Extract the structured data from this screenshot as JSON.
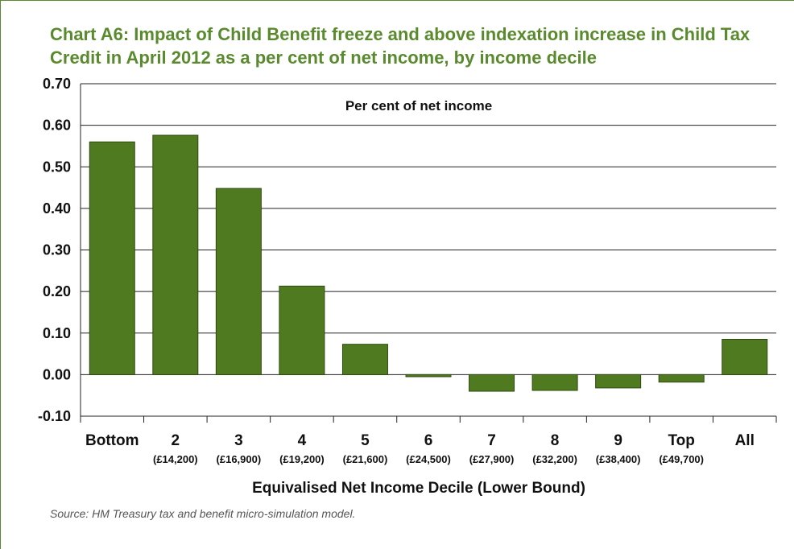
{
  "title": "Chart A6: Impact of Child Benefit freeze and above indexation increase in Child Tax Credit in April 2012 as a per cent of net income, by income decile",
  "source": "Source: HM Treasury tax and benefit micro-simulation model.",
  "colors": {
    "bar": "#4f7a1f",
    "bar_stroke": "#2e4a10",
    "title": "#5a8a2e",
    "grid": "#222222"
  },
  "chart_data": {
    "type": "bar",
    "title": "Chart A6: Impact of Child Benefit freeze and above indexation increase in Child Tax Credit in April 2012 as a per cent of net income, by income decile",
    "inner_label": "Per cent of net income",
    "xlabel": "Equivalised Net Income Decile (Lower Bound)",
    "ylabel": "",
    "categories": [
      "Bottom",
      "2",
      "3",
      "4",
      "5",
      "6",
      "7",
      "8",
      "9",
      "Top",
      "All"
    ],
    "sublabels": [
      "",
      "(£14,200)",
      "(£16,900)",
      "(£19,200)",
      "(£21,600)",
      "(£24,500)",
      "(£27,900)",
      "(£32,200)",
      "(£38,400)",
      "(£49,700)",
      ""
    ],
    "values": [
      0.56,
      0.576,
      0.448,
      0.213,
      0.073,
      -0.005,
      -0.04,
      -0.038,
      -0.032,
      -0.018,
      0.085
    ],
    "ylim": [
      -0.1,
      0.7
    ],
    "yticks": [
      -0.1,
      0.0,
      0.1,
      0.2,
      0.3,
      0.4,
      0.5,
      0.6,
      0.7
    ],
    "ytick_labels": [
      "-0.10",
      "0.00",
      "0.10",
      "0.20",
      "0.30",
      "0.40",
      "0.50",
      "0.60",
      "0.70"
    ],
    "grid": true,
    "legend": "none"
  }
}
